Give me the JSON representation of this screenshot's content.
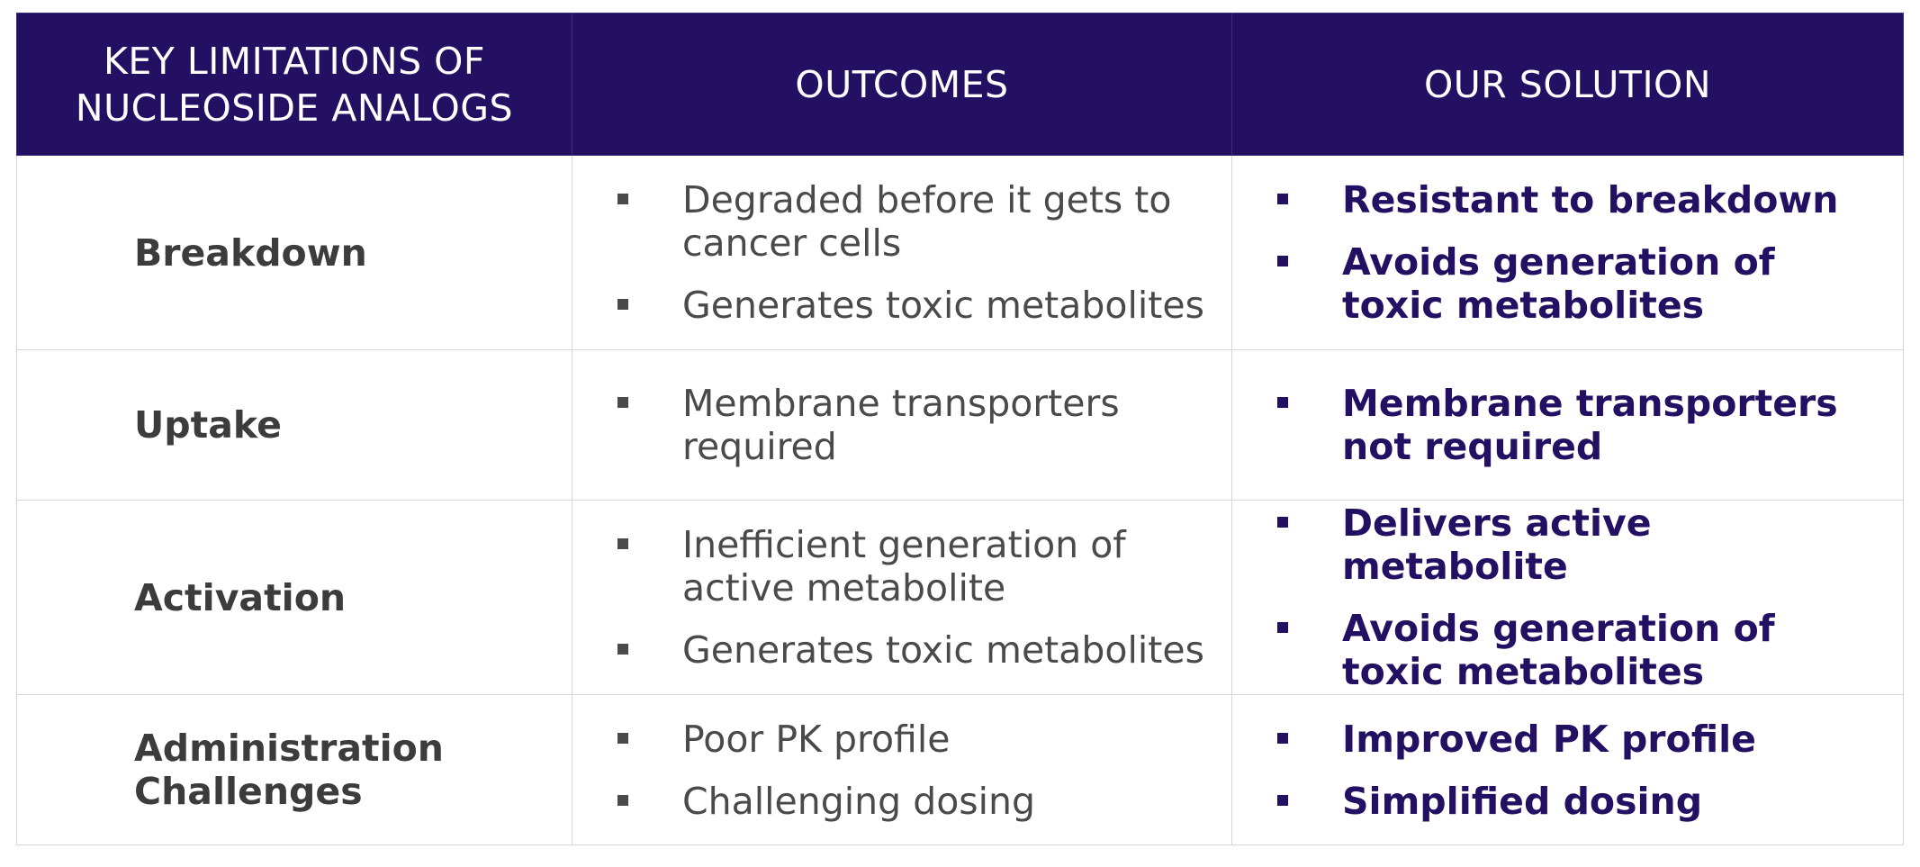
{
  "header": {
    "col1": "KEY LIMITATIONS OF NUCLEOSIDE ANALOGS",
    "col1_line1": "KEY LIMITATIONS OF",
    "col1_line2": "NUCLEOSIDE ANALOGS",
    "col2": "OUTCOMES",
    "col3": "OUR SOLUTION"
  },
  "colors": {
    "header_bg": "#231063",
    "solution_text": "#231063",
    "outcome_text": "#4a4a4a",
    "label_text": "#3c3c3c",
    "border": "#d6d6d6"
  },
  "rows": [
    {
      "label": "Breakdown",
      "outcomes": [
        "Degraded before it gets to cancer cells",
        "Generates toxic metabolites"
      ],
      "solutions": [
        "Resistant to breakdown",
        "Avoids generation of toxic metabolites"
      ]
    },
    {
      "label": "Uptake",
      "outcomes": [
        "Membrane transporters required"
      ],
      "solutions": [
        "Membrane transporters not required"
      ]
    },
    {
      "label": "Activation",
      "outcomes": [
        "Inefficient generation of active metabolite",
        "Generates toxic metabolites"
      ],
      "solutions": [
        "Delivers active metabolite",
        "Avoids generation of toxic metabolites"
      ]
    },
    {
      "label": "Administration Challenges",
      "label_line1": "Administration",
      "label_line2": "Challenges",
      "outcomes": [
        "Poor PK profile",
        "Challenging dosing"
      ],
      "solutions": [
        "Improved PK profile",
        "Simplified dosing"
      ]
    }
  ]
}
